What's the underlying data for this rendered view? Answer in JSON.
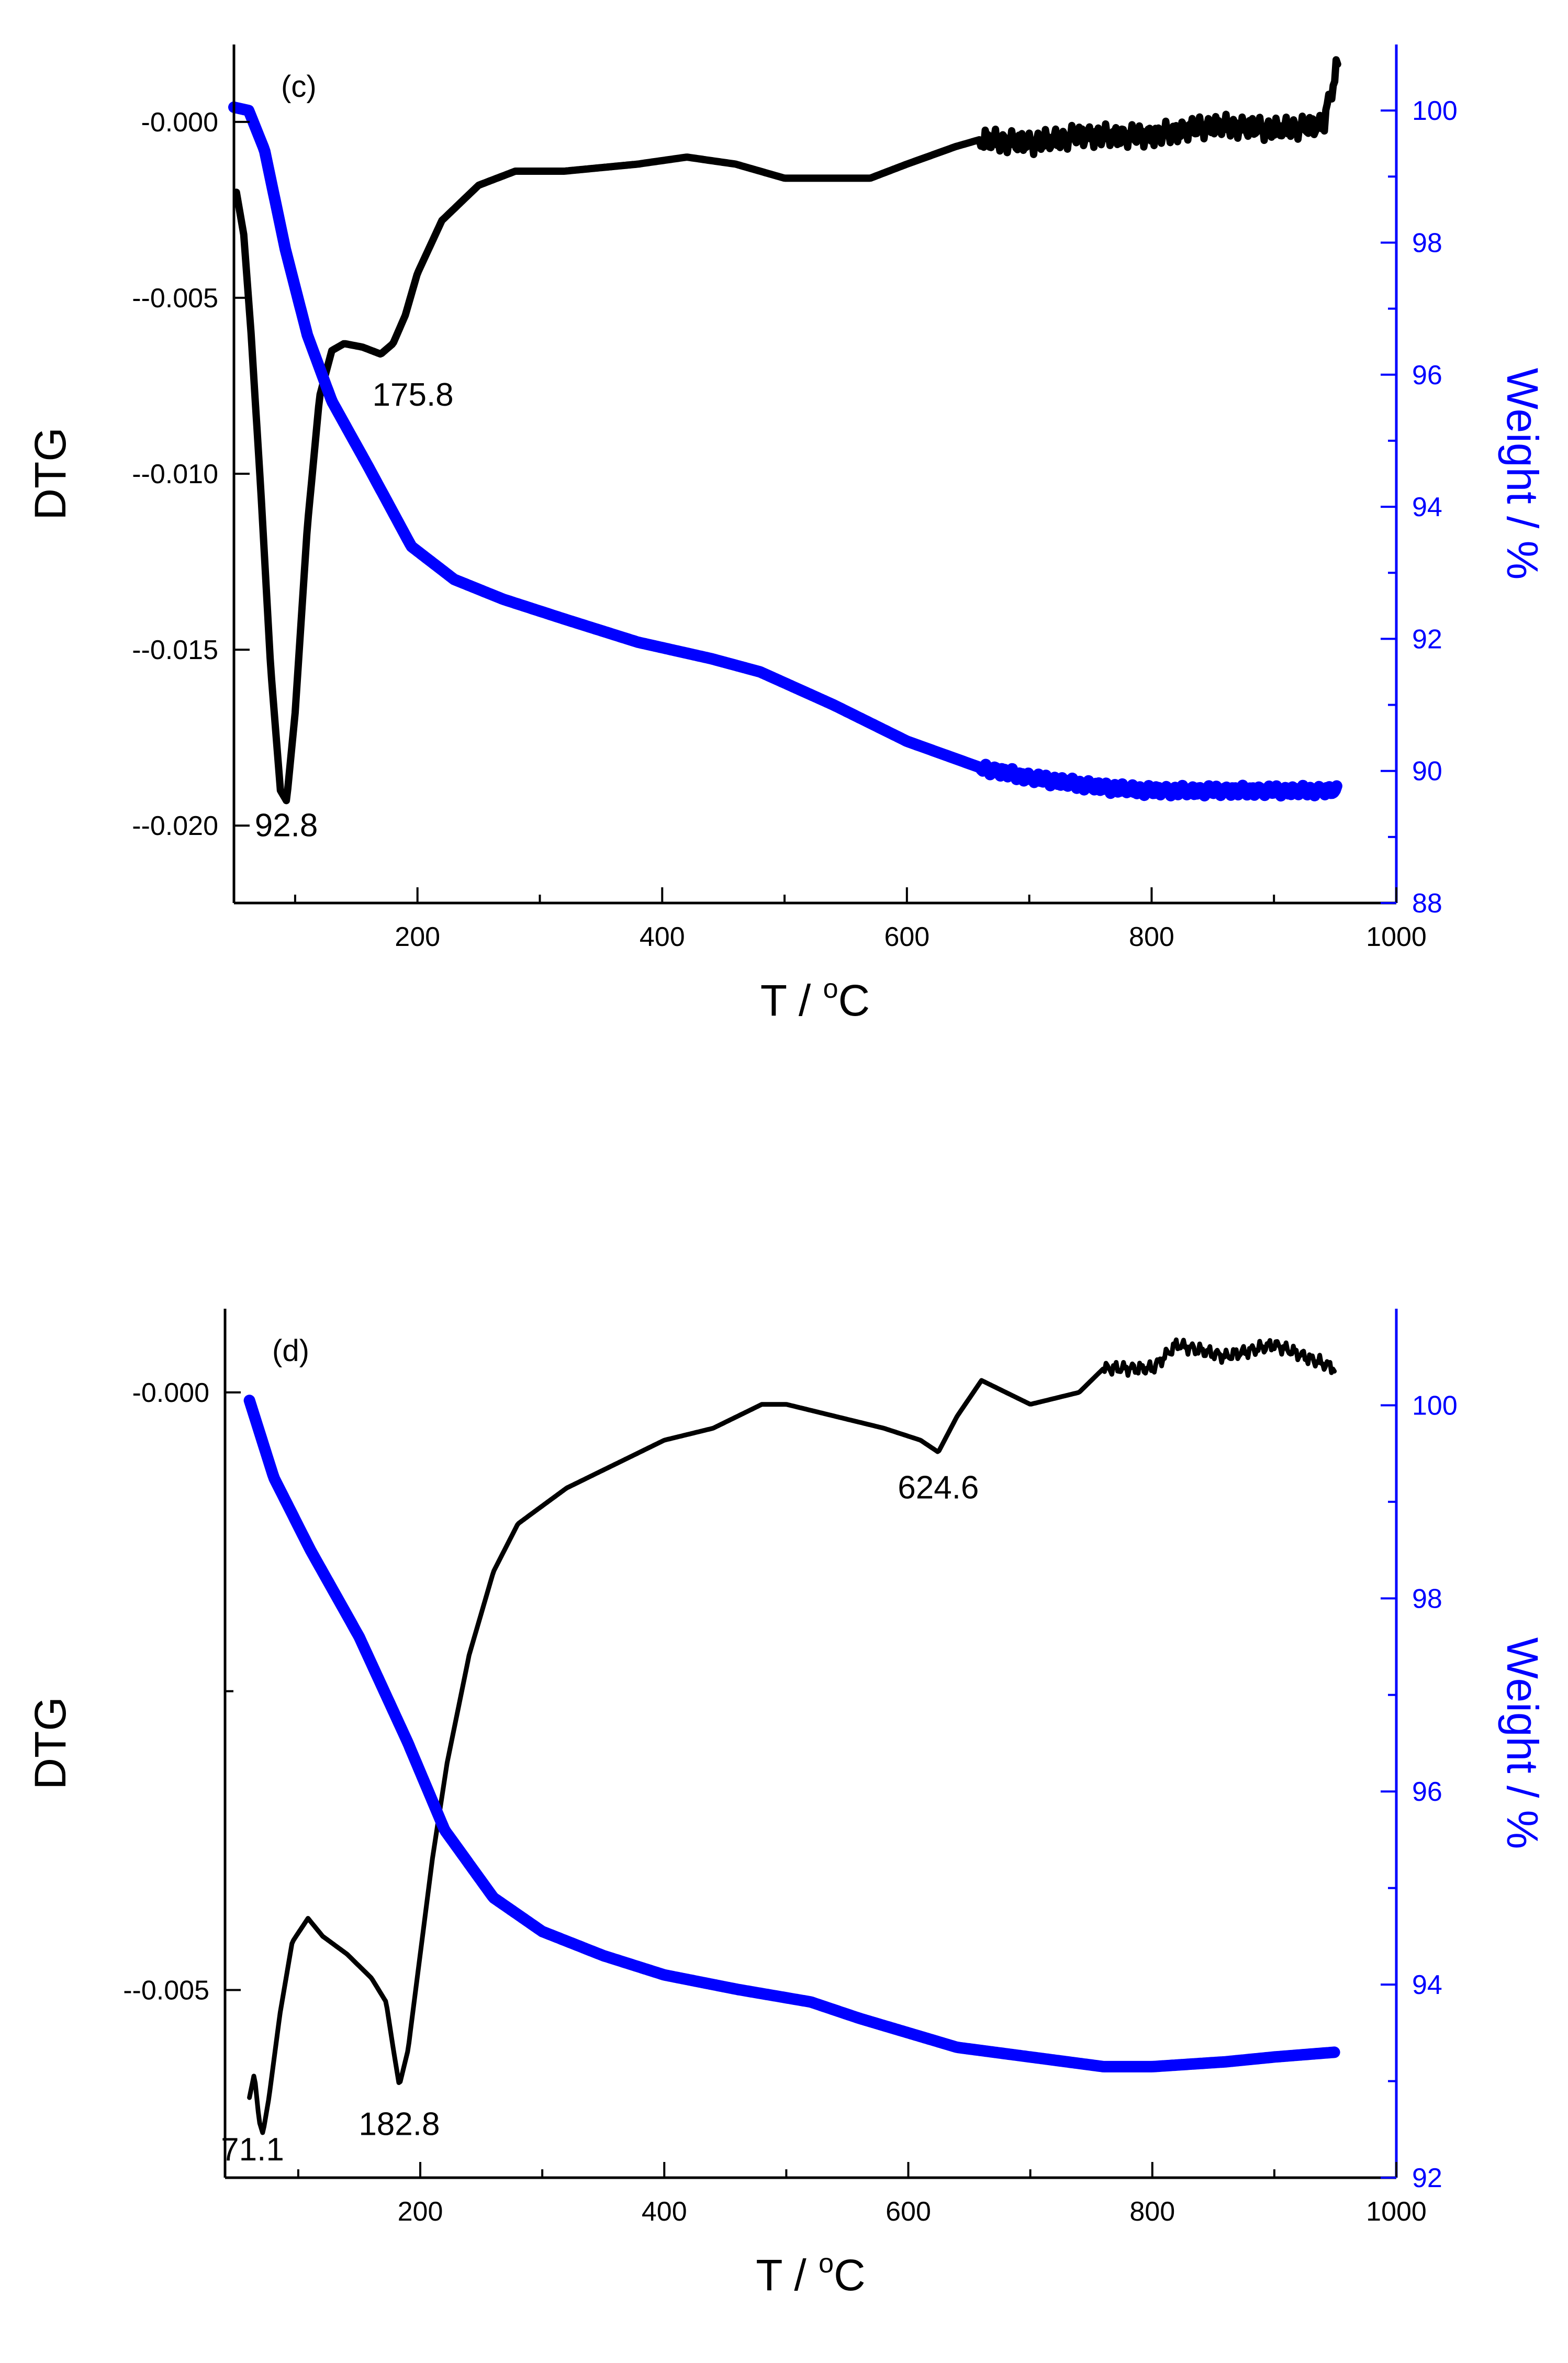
{
  "chart_data": [
    {
      "type": "line",
      "panel_label": "(c)",
      "xlabel": "T / ",
      "xlabel_unit_sup": "o",
      "xlabel_unit": "C",
      "ylabel": "DTG",
      "y2label": "Weight / %",
      "xlim": [
        50,
        1000
      ],
      "ylim": [
        -0.0222,
        0.0022
      ],
      "y2lim": [
        88,
        101
      ],
      "xticks": [
        200,
        400,
        600,
        800,
        1000
      ],
      "xtick_labels": [
        "200",
        "400",
        "600",
        "800",
        "1000"
      ],
      "yticks": [
        0,
        -0.005,
        -0.01,
        -0.015,
        -0.02
      ],
      "ytick_labels": [
        "-0.000",
        "--0.005",
        "--0.010",
        "--0.015",
        "--0.020"
      ],
      "y2ticks": [
        88,
        90,
        92,
        94,
        96,
        98,
        100
      ],
      "y2tick_labels": [
        "88",
        "90",
        "92",
        "94",
        "96",
        "98",
        "100"
      ],
      "annotations": [
        {
          "text": "92.8",
          "x": 92.8,
          "y": -0.0203
        },
        {
          "text": "175.8",
          "x": 175.8,
          "y": -0.0078
        }
      ],
      "series": [
        {
          "name": "DTG",
          "axis": "left",
          "color": "#000000",
          "noise_from": 660,
          "noise_amp": 0.00035,
          "points": [
            [
              52,
              -0.002
            ],
            [
              58,
              -0.0032
            ],
            [
              64,
              -0.006
            ],
            [
              72,
              -0.0105
            ],
            [
              80,
              -0.0155
            ],
            [
              88,
              -0.019
            ],
            [
              93,
              -0.0193
            ],
            [
              100,
              -0.0168
            ],
            [
              110,
              -0.0115
            ],
            [
              120,
              -0.0078
            ],
            [
              130,
              -0.0065
            ],
            [
              140,
              -0.0063
            ],
            [
              155,
              -0.0064
            ],
            [
              170,
              -0.0066
            ],
            [
              180,
              -0.0063
            ],
            [
              190,
              -0.0055
            ],
            [
              200,
              -0.0043
            ],
            [
              220,
              -0.0028
            ],
            [
              250,
              -0.0018
            ],
            [
              280,
              -0.0014
            ],
            [
              320,
              -0.0014
            ],
            [
              380,
              -0.0012
            ],
            [
              420,
              -0.001
            ],
            [
              460,
              -0.0012
            ],
            [
              500,
              -0.0016
            ],
            [
              540,
              -0.0016
            ],
            [
              570,
              -0.0016
            ],
            [
              600,
              -0.0012
            ],
            [
              640,
              -0.0007
            ],
            [
              660,
              -0.0005
            ],
            [
              700,
              -0.0006
            ],
            [
              740,
              -0.0004
            ],
            [
              800,
              -0.0004
            ],
            [
              850,
              -0.0001
            ],
            [
              900,
              -0.0002
            ],
            [
              940,
              -0.0001
            ],
            [
              952,
              0.0016
            ]
          ]
        },
        {
          "name": "Weight",
          "axis": "right",
          "color": "#0000ff",
          "noise_from": 660,
          "noise_amp": 0.08,
          "points": [
            [
              50,
              100.05
            ],
            [
              62,
              100.0
            ],
            [
              75,
              99.4
            ],
            [
              92,
              97.9
            ],
            [
              110,
              96.6
            ],
            [
              130,
              95.6
            ],
            [
              160,
              94.6
            ],
            [
              195,
              93.4
            ],
            [
              230,
              92.9
            ],
            [
              270,
              92.6
            ],
            [
              320,
              92.3
            ],
            [
              380,
              91.95
            ],
            [
              440,
              91.7
            ],
            [
              480,
              91.5
            ],
            [
              540,
              91.0
            ],
            [
              600,
              90.45
            ],
            [
              660,
              90.05
            ],
            [
              700,
              89.9
            ],
            [
              760,
              89.75
            ],
            [
              800,
              89.7
            ],
            [
              850,
              89.7
            ],
            [
              900,
              89.7
            ],
            [
              952,
              89.7
            ]
          ]
        }
      ]
    },
    {
      "type": "line",
      "panel_label": "(d)",
      "xlabel": "T / ",
      "xlabel_unit_sup": "o",
      "xlabel_unit": "C",
      "ylabel": "DTG",
      "y2label": "Weight / %",
      "xlim": [
        40,
        1000
      ],
      "ylim": [
        -0.00657,
        0.0007
      ],
      "y2lim": [
        92,
        101
      ],
      "xticks": [
        200,
        400,
        600,
        800,
        1000
      ],
      "xtick_labels": [
        "200",
        "400",
        "600",
        "800",
        "1000"
      ],
      "yticks": [
        0,
        -0.005
      ],
      "ytick_labels": [
        "-0.000",
        "--0.005"
      ],
      "yminor": [
        -0.0025
      ],
      "y2ticks": [
        92,
        94,
        96,
        98,
        100
      ],
      "y2tick_labels": [
        "92",
        "94",
        "96",
        "98",
        "100"
      ],
      "annotations": [
        {
          "text": "71.1",
          "x": 71.1,
          "y": -0.00625
        },
        {
          "text": "182.8",
          "x": 182.8,
          "y": -0.00595
        },
        {
          "text": "624.6",
          "x": 624.6,
          "y": -0.00058
        }
      ],
      "series": [
        {
          "name": "DTG",
          "axis": "left",
          "color": "#000000",
          "noise_from": 760,
          "noise_amp": 6e-05,
          "points": [
            [
              60,
              -0.0059
            ],
            [
              64,
              -0.0057
            ],
            [
              68,
              -0.0061
            ],
            [
              71,
              -0.0062
            ],
            [
              76,
              -0.0059
            ],
            [
              85,
              -0.0052
            ],
            [
              95,
              -0.0046
            ],
            [
              108,
              -0.0044
            ],
            [
              120,
              -0.00455
            ],
            [
              140,
              -0.0047
            ],
            [
              160,
              -0.0049
            ],
            [
              172,
              -0.0051
            ],
            [
              178,
              -0.0055
            ],
            [
              182.8,
              -0.0058
            ],
            [
              190,
              -0.0055
            ],
            [
              200,
              -0.0047
            ],
            [
              210,
              -0.0039
            ],
            [
              222,
              -0.0031
            ],
            [
              240,
              -0.0022
            ],
            [
              260,
              -0.0015
            ],
            [
              280,
              -0.0011
            ],
            [
              320,
              -0.0008
            ],
            [
              360,
              -0.0006
            ],
            [
              400,
              -0.0004
            ],
            [
              440,
              -0.0003
            ],
            [
              480,
              -0.0001
            ],
            [
              500,
              -0.0001
            ],
            [
              540,
              -0.0002
            ],
            [
              580,
              -0.0003
            ],
            [
              610,
              -0.0004
            ],
            [
              624.6,
              -0.0005
            ],
            [
              640,
              -0.0002
            ],
            [
              660,
              0.0001
            ],
            [
              700,
              -0.0001
            ],
            [
              740,
              0.0
            ],
            [
              760,
              0.0002
            ],
            [
              800,
              0.0002
            ],
            [
              820,
              0.0004
            ],
            [
              860,
              0.0003
            ],
            [
              900,
              0.0004
            ],
            [
              950,
              0.0002
            ]
          ]
        },
        {
          "name": "Weight",
          "axis": "right",
          "color": "#0000ff",
          "noise_from": 9999,
          "noise_amp": 0,
          "points": [
            [
              60,
              100.05
            ],
            [
              80,
              99.25
            ],
            [
              110,
              98.5
            ],
            [
              150,
              97.6
            ],
            [
              190,
              96.5
            ],
            [
              220,
              95.6
            ],
            [
              260,
              94.9
            ],
            [
              300,
              94.55
            ],
            [
              350,
              94.3
            ],
            [
              400,
              94.1
            ],
            [
              460,
              93.95
            ],
            [
              520,
              93.82
            ],
            [
              560,
              93.65
            ],
            [
              600,
              93.5
            ],
            [
              640,
              93.35
            ],
            [
              700,
              93.25
            ],
            [
              760,
              93.15
            ],
            [
              800,
              93.15
            ],
            [
              860,
              93.2
            ],
            [
              900,
              93.25
            ],
            [
              950,
              93.3
            ]
          ]
        }
      ]
    }
  ]
}
